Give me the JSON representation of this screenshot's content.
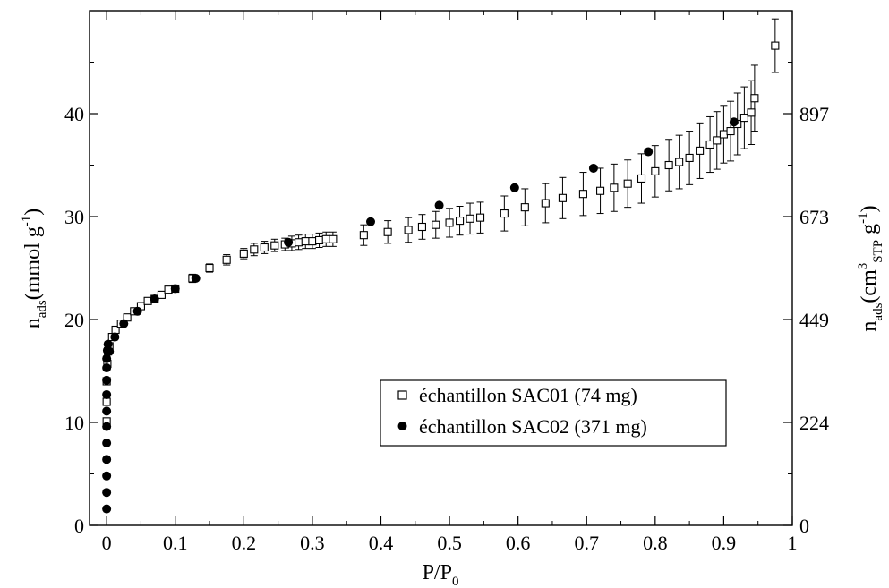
{
  "chart_data": {
    "type": "scatter",
    "title": "",
    "xlabel": {
      "main": "P/P",
      "sub": "0"
    },
    "ylabel_left": {
      "main": "n",
      "sub": "ads",
      "unit": "(mmol g",
      "sup": "-1",
      "close": ")"
    },
    "ylabel_right": {
      "main": "n",
      "sub": "ads",
      "unit": "(cm",
      "sup3": "3",
      "sub2": "STP",
      "unit2": " g",
      "sup": "-1",
      "close": ")"
    },
    "xlim": [
      -0.025,
      1.0
    ],
    "ylim": [
      0,
      50
    ],
    "x_ticks": [
      {
        "value": 0,
        "label": "0"
      },
      {
        "value": 0.1,
        "label": "0.1"
      },
      {
        "value": 0.2,
        "label": "0.2"
      },
      {
        "value": 0.3,
        "label": "0.3"
      },
      {
        "value": 0.4,
        "label": "0.4"
      },
      {
        "value": 0.5,
        "label": "0.5"
      },
      {
        "value": 0.6,
        "label": "0.6"
      },
      {
        "value": 0.7,
        "label": "0.7"
      },
      {
        "value": 0.8,
        "label": "0.8"
      },
      {
        "value": 0.9,
        "label": "0.9"
      },
      {
        "value": 1.0,
        "label": "1"
      }
    ],
    "y_ticks_left": [
      {
        "value": 0,
        "label": "0"
      },
      {
        "value": 10,
        "label": "10"
      },
      {
        "value": 20,
        "label": "20"
      },
      {
        "value": 30,
        "label": "30"
      },
      {
        "value": 40,
        "label": "40"
      }
    ],
    "y_ticks_right": [
      {
        "value": 0,
        "label": "0"
      },
      {
        "value": 10,
        "label": "224"
      },
      {
        "value": 20,
        "label": "449"
      },
      {
        "value": 30,
        "label": "673"
      },
      {
        "value": 40,
        "label": "897"
      }
    ],
    "grid": false,
    "legend": {
      "placement": "lower-right"
    },
    "series": [
      {
        "name": "échantillon SAC01 (74 mg)",
        "marker": "open-square",
        "x": [
          0.0,
          0.0,
          0.0,
          0.001,
          0.002,
          0.004,
          0.008,
          0.013,
          0.021,
          0.03,
          0.04,
          0.05,
          0.06,
          0.07,
          0.08,
          0.09,
          0.1,
          0.125,
          0.15,
          0.175,
          0.2,
          0.215,
          0.23,
          0.245,
          0.26,
          0.27,
          0.28,
          0.29,
          0.3,
          0.31,
          0.32,
          0.33,
          0.375,
          0.41,
          0.44,
          0.46,
          0.48,
          0.5,
          0.515,
          0.53,
          0.545,
          0.58,
          0.61,
          0.64,
          0.665,
          0.695,
          0.72,
          0.74,
          0.76,
          0.78,
          0.8,
          0.82,
          0.835,
          0.85,
          0.865,
          0.88,
          0.89,
          0.9,
          0.91,
          0.92,
          0.93,
          0.94,
          0.945,
          0.975
        ],
        "y": [
          10.1,
          12.0,
          14.0,
          15.7,
          16.9,
          17.4,
          18.3,
          19.0,
          19.6,
          20.2,
          20.8,
          21.3,
          21.8,
          22.0,
          22.4,
          22.9,
          23.0,
          24.0,
          25.0,
          25.8,
          26.4,
          26.8,
          27.0,
          27.2,
          27.3,
          27.4,
          27.5,
          27.6,
          27.6,
          27.7,
          27.8,
          27.8,
          28.2,
          28.5,
          28.7,
          29.0,
          29.2,
          29.4,
          29.6,
          29.8,
          29.9,
          30.3,
          30.9,
          31.3,
          31.8,
          32.2,
          32.5,
          32.8,
          33.2,
          33.7,
          34.4,
          35.0,
          35.3,
          35.7,
          36.4,
          37.0,
          37.4,
          38.0,
          38.3,
          39.0,
          39.6,
          40.1,
          41.5,
          46.6
        ],
        "err": [
          0.1,
          0.1,
          0.1,
          0.1,
          0.1,
          0.2,
          0.2,
          0.3,
          0.3,
          0.3,
          0.3,
          0.3,
          0.3,
          0.3,
          0.3,
          0.3,
          0.3,
          0.4,
          0.4,
          0.5,
          0.5,
          0.6,
          0.6,
          0.6,
          0.6,
          0.7,
          0.7,
          0.7,
          0.7,
          0.7,
          0.7,
          0.7,
          1.0,
          1.1,
          1.2,
          1.2,
          1.3,
          1.4,
          1.4,
          1.5,
          1.5,
          1.7,
          1.8,
          1.9,
          2.0,
          2.1,
          2.2,
          2.3,
          2.3,
          2.4,
          2.5,
          2.5,
          2.6,
          2.6,
          2.7,
          2.7,
          2.8,
          2.8,
          2.9,
          3.0,
          3.0,
          3.1,
          3.2,
          2.6
        ]
      },
      {
        "name": "échantillon SAC02 (371 mg)",
        "marker": "filled-circle",
        "x": [
          0.0,
          0.0,
          0.0,
          0.0,
          0.0,
          0.0,
          0.0,
          0.0,
          0.0,
          0.0,
          0.0,
          0.001,
          0.002,
          0.004,
          0.012,
          0.025,
          0.045,
          0.07,
          0.1,
          0.13,
          0.265,
          0.385,
          0.485,
          0.595,
          0.71,
          0.79,
          0.915
        ],
        "y": [
          1.6,
          3.2,
          4.8,
          6.4,
          8.0,
          9.6,
          11.1,
          12.7,
          14.1,
          15.3,
          16.2,
          17.0,
          17.6,
          16.9,
          18.3,
          19.6,
          20.8,
          22.0,
          23.0,
          24.0,
          27.5,
          29.5,
          31.1,
          32.8,
          34.7,
          36.3,
          39.2
        ]
      }
    ]
  }
}
